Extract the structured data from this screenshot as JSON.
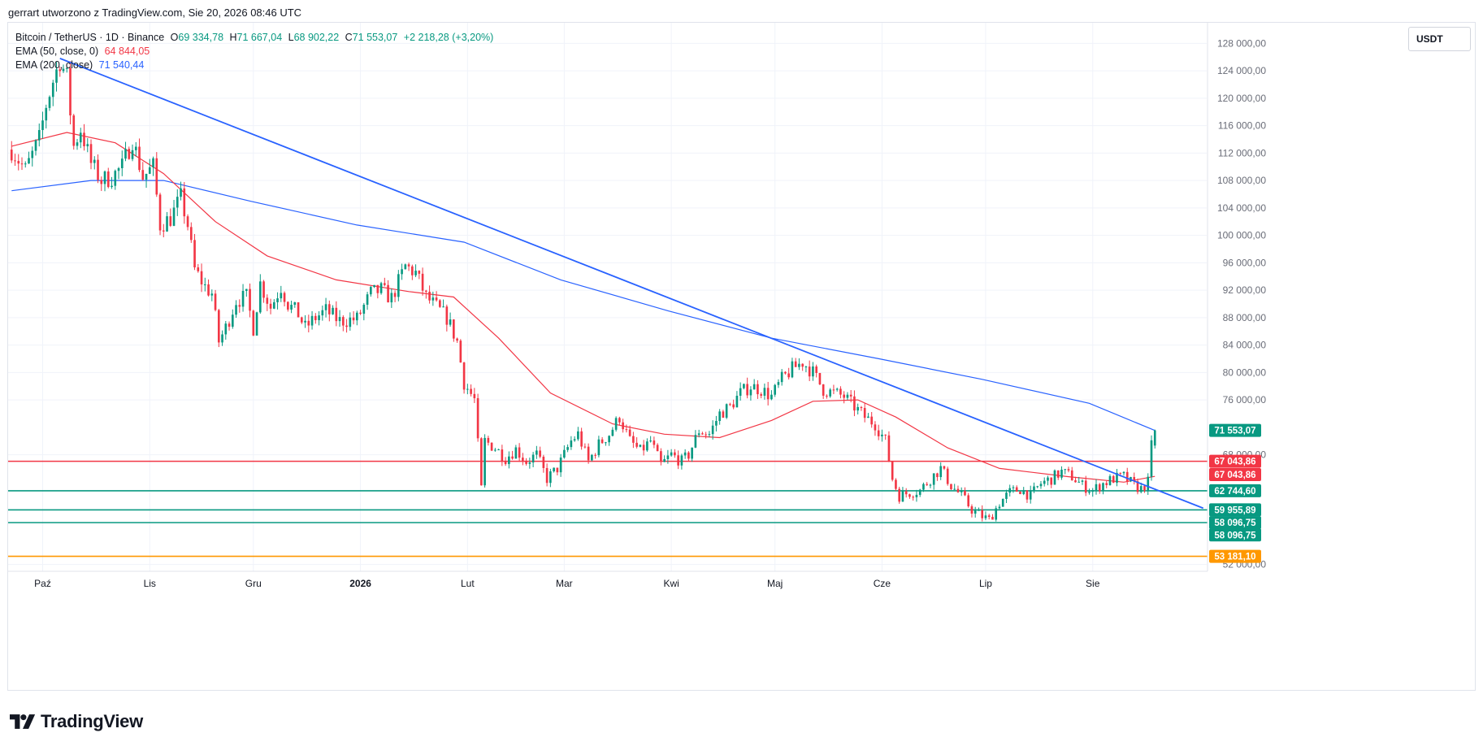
{
  "header": {
    "author_line": "gerrart utworzono z TradingView.com, Sie 20, 2026 08:46 UTC"
  },
  "legend": {
    "symbol": "Bitcoin / TetherUS · 1D · Binance",
    "open_label": "O",
    "open": "69 334,78",
    "high_label": "H",
    "high": "71 667,04",
    "low_label": "L",
    "low": "68 902,22",
    "close_label": "C",
    "close": "71 553,07",
    "change": "+2 218,28 (+3,20%)",
    "ema50_label": "EMA (50, close, 0)",
    "ema50_value": "64 844,05",
    "ema200_label": "EMA (200, close)",
    "ema200_value": "71 540,44"
  },
  "unit_label": "USDT",
  "logo_text": "TradingView",
  "colors": {
    "up": "#089981",
    "down": "#f23645",
    "ema50": "#f23645",
    "ema200": "#2962ff",
    "trendline": "#2962ff",
    "resistance": "#f23645",
    "support": "#089981",
    "orange": "#ff9800",
    "grid": "#f0f3fa",
    "text": "#131722",
    "axis_text": "#6a6d78"
  },
  "chart_data": {
    "type": "candlestick",
    "symbol": "BTCUSDT",
    "interval": "1D",
    "exchange": "Binance",
    "y_axis": {
      "ticks": [
        128000,
        124000,
        120000,
        116000,
        112000,
        108000,
        104000,
        100000,
        96000,
        92000,
        88000,
        84000,
        80000,
        76000,
        68000,
        52000
      ],
      "tick_labels": [
        "128 000,00",
        "124 000,00",
        "120 000,00",
        "116 000,00",
        "112 000,00",
        "108 000,00",
        "104 000,00",
        "100 000,00",
        "96 000,00",
        "92 000,00",
        "88 000,00",
        "84 000,00",
        "80 000,00",
        "76 000,00",
        "68 000,00",
        "52 000,00"
      ],
      "range": [
        51000,
        131000
      ]
    },
    "x_axis": {
      "labels": [
        {
          "text": "Paź",
          "date": "2025-10-01",
          "bold": false
        },
        {
          "text": "Lis",
          "date": "2025-11-01",
          "bold": false
        },
        {
          "text": "Gru",
          "date": "2025-12-01",
          "bold": false
        },
        {
          "text": "2026",
          "date": "2026-01-01",
          "bold": true
        },
        {
          "text": "Lut",
          "date": "2026-02-01",
          "bold": false
        },
        {
          "text": "Mar",
          "date": "2026-03-01",
          "bold": false
        },
        {
          "text": "Kwi",
          "date": "2026-04-01",
          "bold": false
        },
        {
          "text": "Maj",
          "date": "2026-05-01",
          "bold": false
        },
        {
          "text": "Cze",
          "date": "2026-06-01",
          "bold": false
        },
        {
          "text": "Lip",
          "date": "2026-07-01",
          "bold": false
        },
        {
          "text": "Sie",
          "date": "2026-08-01",
          "bold": false
        }
      ],
      "range": [
        "2025-09-21",
        "2026-09-03"
      ]
    },
    "price_path": [
      [
        "2025-09-22",
        112500
      ],
      [
        "2025-09-26",
        109500
      ],
      [
        "2025-09-30",
        114000
      ],
      [
        "2025-10-02",
        119000
      ],
      [
        "2025-10-04",
        122500
      ],
      [
        "2025-10-06",
        125500
      ],
      [
        "2025-10-08",
        123000
      ],
      [
        "2025-10-10",
        113000
      ],
      [
        "2025-10-12",
        115500
      ],
      [
        "2025-10-15",
        110500
      ],
      [
        "2025-10-18",
        108000
      ],
      [
        "2025-10-21",
        108500
      ],
      [
        "2025-10-24",
        110000
      ],
      [
        "2025-10-27",
        114000
      ],
      [
        "2025-10-30",
        108500
      ],
      [
        "2025-11-02",
        110000
      ],
      [
        "2025-11-04",
        101500
      ],
      [
        "2025-11-07",
        102500
      ],
      [
        "2025-11-10",
        105500
      ],
      [
        "2025-11-12",
        101500
      ],
      [
        "2025-11-14",
        95000
      ],
      [
        "2025-11-17",
        92500
      ],
      [
        "2025-11-19",
        91500
      ],
      [
        "2025-11-21",
        84500
      ],
      [
        "2025-11-23",
        86500
      ],
      [
        "2025-11-26",
        90500
      ],
      [
        "2025-11-29",
        91000
      ],
      [
        "2025-12-01",
        86500
      ],
      [
        "2025-12-03",
        93000
      ],
      [
        "2025-12-06",
        89500
      ],
      [
        "2025-12-09",
        92500
      ],
      [
        "2025-12-11",
        90000
      ],
      [
        "2025-12-14",
        88500
      ],
      [
        "2025-12-16",
        86500
      ],
      [
        "2025-12-19",
        88000
      ],
      [
        "2025-12-22",
        89000
      ],
      [
        "2025-12-26",
        87500
      ],
      [
        "2025-12-31",
        87800
      ],
      [
        "2026-01-04",
        91500
      ],
      [
        "2026-01-07",
        92000
      ],
      [
        "2026-01-10",
        90800
      ],
      [
        "2026-01-14",
        95500
      ],
      [
        "2026-01-17",
        94500
      ],
      [
        "2026-01-20",
        91000
      ],
      [
        "2026-01-23",
        89500
      ],
      [
        "2026-01-26",
        88000
      ],
      [
        "2026-01-29",
        84500
      ],
      [
        "2026-01-31",
        78500
      ],
      [
        "2026-02-03",
        76000
      ],
      [
        "2026-02-05",
        63000
      ],
      [
        "2026-02-06",
        70000
      ],
      [
        "2026-02-09",
        69000
      ],
      [
        "2026-02-12",
        67500
      ],
      [
        "2026-02-15",
        68800
      ],
      [
        "2026-02-18",
        67000
      ],
      [
        "2026-02-21",
        68000
      ],
      [
        "2026-02-24",
        64500
      ],
      [
        "2026-02-27",
        66000
      ],
      [
        "2026-03-03",
        70000
      ],
      [
        "2026-03-05",
        71000
      ],
      [
        "2026-03-08",
        67000
      ],
      [
        "2026-03-11",
        69500
      ],
      [
        "2026-03-14",
        71000
      ],
      [
        "2026-03-17",
        73500
      ],
      [
        "2026-03-20",
        70000
      ],
      [
        "2026-03-23",
        68500
      ],
      [
        "2026-03-26",
        70000
      ],
      [
        "2026-03-29",
        66500
      ],
      [
        "2026-04-01",
        68000
      ],
      [
        "2026-04-04",
        67000
      ],
      [
        "2026-04-06",
        68000
      ],
      [
        "2026-04-09",
        71500
      ],
      [
        "2026-04-12",
        71000
      ],
      [
        "2026-04-15",
        74000
      ],
      [
        "2026-04-18",
        75000
      ],
      [
        "2026-04-21",
        77000
      ],
      [
        "2026-04-24",
        78000
      ],
      [
        "2026-04-27",
        77500
      ],
      [
        "2026-04-30",
        76500
      ],
      [
        "2026-05-03",
        79000
      ],
      [
        "2026-05-06",
        80500
      ],
      [
        "2026-05-09",
        81500
      ],
      [
        "2026-05-12",
        80000
      ],
      [
        "2026-05-15",
        77500
      ],
      [
        "2026-05-18",
        77000
      ],
      [
        "2026-05-21",
        76500
      ],
      [
        "2026-05-24",
        75000
      ],
      [
        "2026-05-27",
        73500
      ],
      [
        "2026-05-30",
        72500
      ],
      [
        "2026-06-02",
        70000
      ],
      [
        "2026-06-04",
        64500
      ],
      [
        "2026-06-06",
        62000
      ],
      [
        "2026-06-09",
        62500
      ],
      [
        "2026-06-12",
        62800
      ],
      [
        "2026-06-15",
        64500
      ],
      [
        "2026-06-18",
        66000
      ],
      [
        "2026-06-21",
        63500
      ],
      [
        "2026-06-24",
        62000
      ],
      [
        "2026-06-27",
        60000
      ],
      [
        "2026-06-30",
        59000
      ],
      [
        "2026-07-02",
        58500
      ],
      [
        "2026-07-05",
        61000
      ],
      [
        "2026-07-08",
        62500
      ],
      [
        "2026-07-11",
        63000
      ],
      [
        "2026-07-14",
        62000
      ],
      [
        "2026-07-17",
        63800
      ],
      [
        "2026-07-20",
        64500
      ],
      [
        "2026-07-23",
        65500
      ],
      [
        "2026-07-26",
        64800
      ],
      [
        "2026-07-29",
        63500
      ],
      [
        "2026-08-01",
        62800
      ],
      [
        "2026-08-04",
        63800
      ],
      [
        "2026-08-07",
        64500
      ],
      [
        "2026-08-10",
        64800
      ],
      [
        "2026-08-13",
        63500
      ],
      [
        "2026-08-15",
        63000
      ],
      [
        "2026-08-17",
        64000
      ],
      [
        "2026-08-18",
        69300
      ],
      [
        "2026-08-19",
        71553
      ]
    ],
    "ema50": [
      [
        "2025-09-22",
        113000
      ],
      [
        "2025-10-08",
        115000
      ],
      [
        "2025-10-22",
        113500
      ],
      [
        "2025-11-05",
        109000
      ],
      [
        "2025-11-20",
        102000
      ],
      [
        "2025-12-05",
        97000
      ],
      [
        "2025-12-25",
        93500
      ],
      [
        "2026-01-15",
        91800
      ],
      [
        "2026-01-28",
        91000
      ],
      [
        "2026-02-10",
        85000
      ],
      [
        "2026-02-25",
        77000
      ],
      [
        "2026-03-15",
        72500
      ],
      [
        "2026-03-30",
        71000
      ],
      [
        "2026-04-15",
        70500
      ],
      [
        "2026-04-30",
        73000
      ],
      [
        "2026-05-12",
        75800
      ],
      [
        "2026-05-25",
        76000
      ],
      [
        "2026-06-05",
        73500
      ],
      [
        "2026-06-20",
        69000
      ],
      [
        "2026-07-05",
        66000
      ],
      [
        "2026-07-25",
        64800
      ],
      [
        "2026-08-10",
        64000
      ],
      [
        "2026-08-19",
        64844
      ]
    ],
    "ema200": [
      [
        "2025-09-22",
        106500
      ],
      [
        "2025-10-15",
        108000
      ],
      [
        "2025-11-05",
        108000
      ],
      [
        "2025-11-30",
        105000
      ],
      [
        "2025-12-31",
        101500
      ],
      [
        "2026-01-31",
        99000
      ],
      [
        "2026-02-28",
        93500
      ],
      [
        "2026-03-31",
        89000
      ],
      [
        "2026-04-30",
        85000
      ],
      [
        "2026-05-31",
        82000
      ],
      [
        "2026-06-30",
        79000
      ],
      [
        "2026-07-31",
        75500
      ],
      [
        "2026-08-19",
        71540
      ]
    ],
    "trendline": [
      [
        "2025-10-06",
        125800
      ],
      [
        "2026-09-02",
        60200
      ]
    ],
    "horizontal_levels": [
      {
        "price": 67043.86,
        "label": "67 043,86",
        "color": "#f23645",
        "line": true
      },
      {
        "price": 62744.6,
        "label": "62 744,60",
        "color": "#089981",
        "line": true
      },
      {
        "price": 59955.89,
        "label": "59 955,89",
        "color": "#089981",
        "line": true
      },
      {
        "price": 58096.75,
        "label": "58 096,75",
        "color": "#089981",
        "line": true
      },
      {
        "price": 53181.1,
        "label": "53 181,10",
        "color": "#ff9800",
        "line": true
      }
    ],
    "price_tags": [
      {
        "price": 71553.07,
        "label": "71 553,07",
        "color": "#089981"
      },
      {
        "price": 67043.86,
        "label": "67 043,86",
        "color": "#f23645"
      },
      {
        "price": 65100.0,
        "label": "67 043,86",
        "color": "#f23645"
      },
      {
        "price": 62744.6,
        "label": "62 744,60",
        "color": "#089981"
      },
      {
        "price": 59955.89,
        "label": "59 955,89",
        "color": "#089981"
      },
      {
        "price": 58096.75,
        "label": "58 096,75",
        "color": "#089981"
      },
      {
        "price": 56300.0,
        "label": "58 096,75",
        "color": "#089981"
      },
      {
        "price": 53181.1,
        "label": "53 181,10",
        "color": "#ff9800"
      }
    ],
    "grid": true
  }
}
